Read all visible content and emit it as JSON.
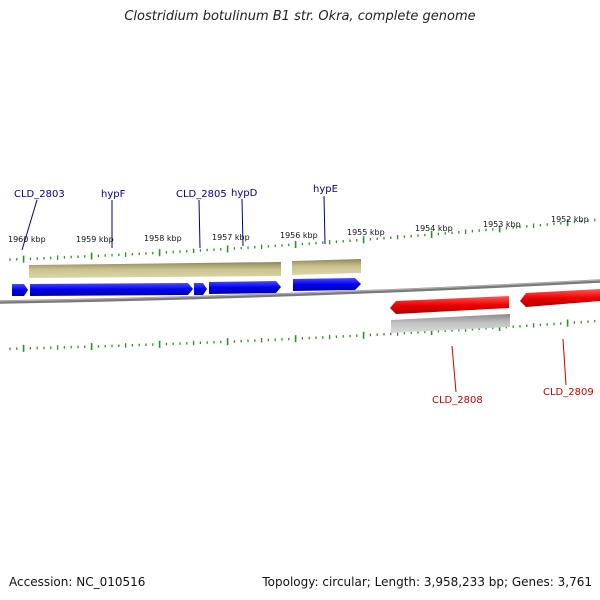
{
  "title": "Clostridium botulinum B1 str. Okra, complete genome",
  "footer": {
    "accession": "Accession: NC_010516",
    "summary": "Topology: circular; Length: 3,958,233 bp; Genes: 3,761"
  },
  "colors": {
    "backbone": "#808080",
    "ticks": "#2f8f2f",
    "forward_gene": "#0000ee",
    "reverse_gene": "#ee0000",
    "forward_cds": "#bdb583",
    "reverse_cds": "#b8b8b8",
    "forward_label": "#00008b",
    "reverse_label": "#cc0000"
  },
  "scale": {
    "ticks": [
      {
        "label": "1960 kbp"
      },
      {
        "label": "1959 kbp"
      },
      {
        "label": "1958 kbp"
      },
      {
        "label": "1957 kbp"
      },
      {
        "label": "1956 kbp"
      },
      {
        "label": "1955 kbp"
      },
      {
        "label": "1954 kbp"
      },
      {
        "label": "1953 kbp"
      },
      {
        "label": "1952 kbp"
      }
    ]
  },
  "gene_labels": {
    "forward": [
      "CLD_2803",
      "hypF",
      "CLD_2805",
      "hypD",
      "hypE"
    ],
    "reverse": [
      "CLD_2808",
      "CLD_2809"
    ]
  }
}
